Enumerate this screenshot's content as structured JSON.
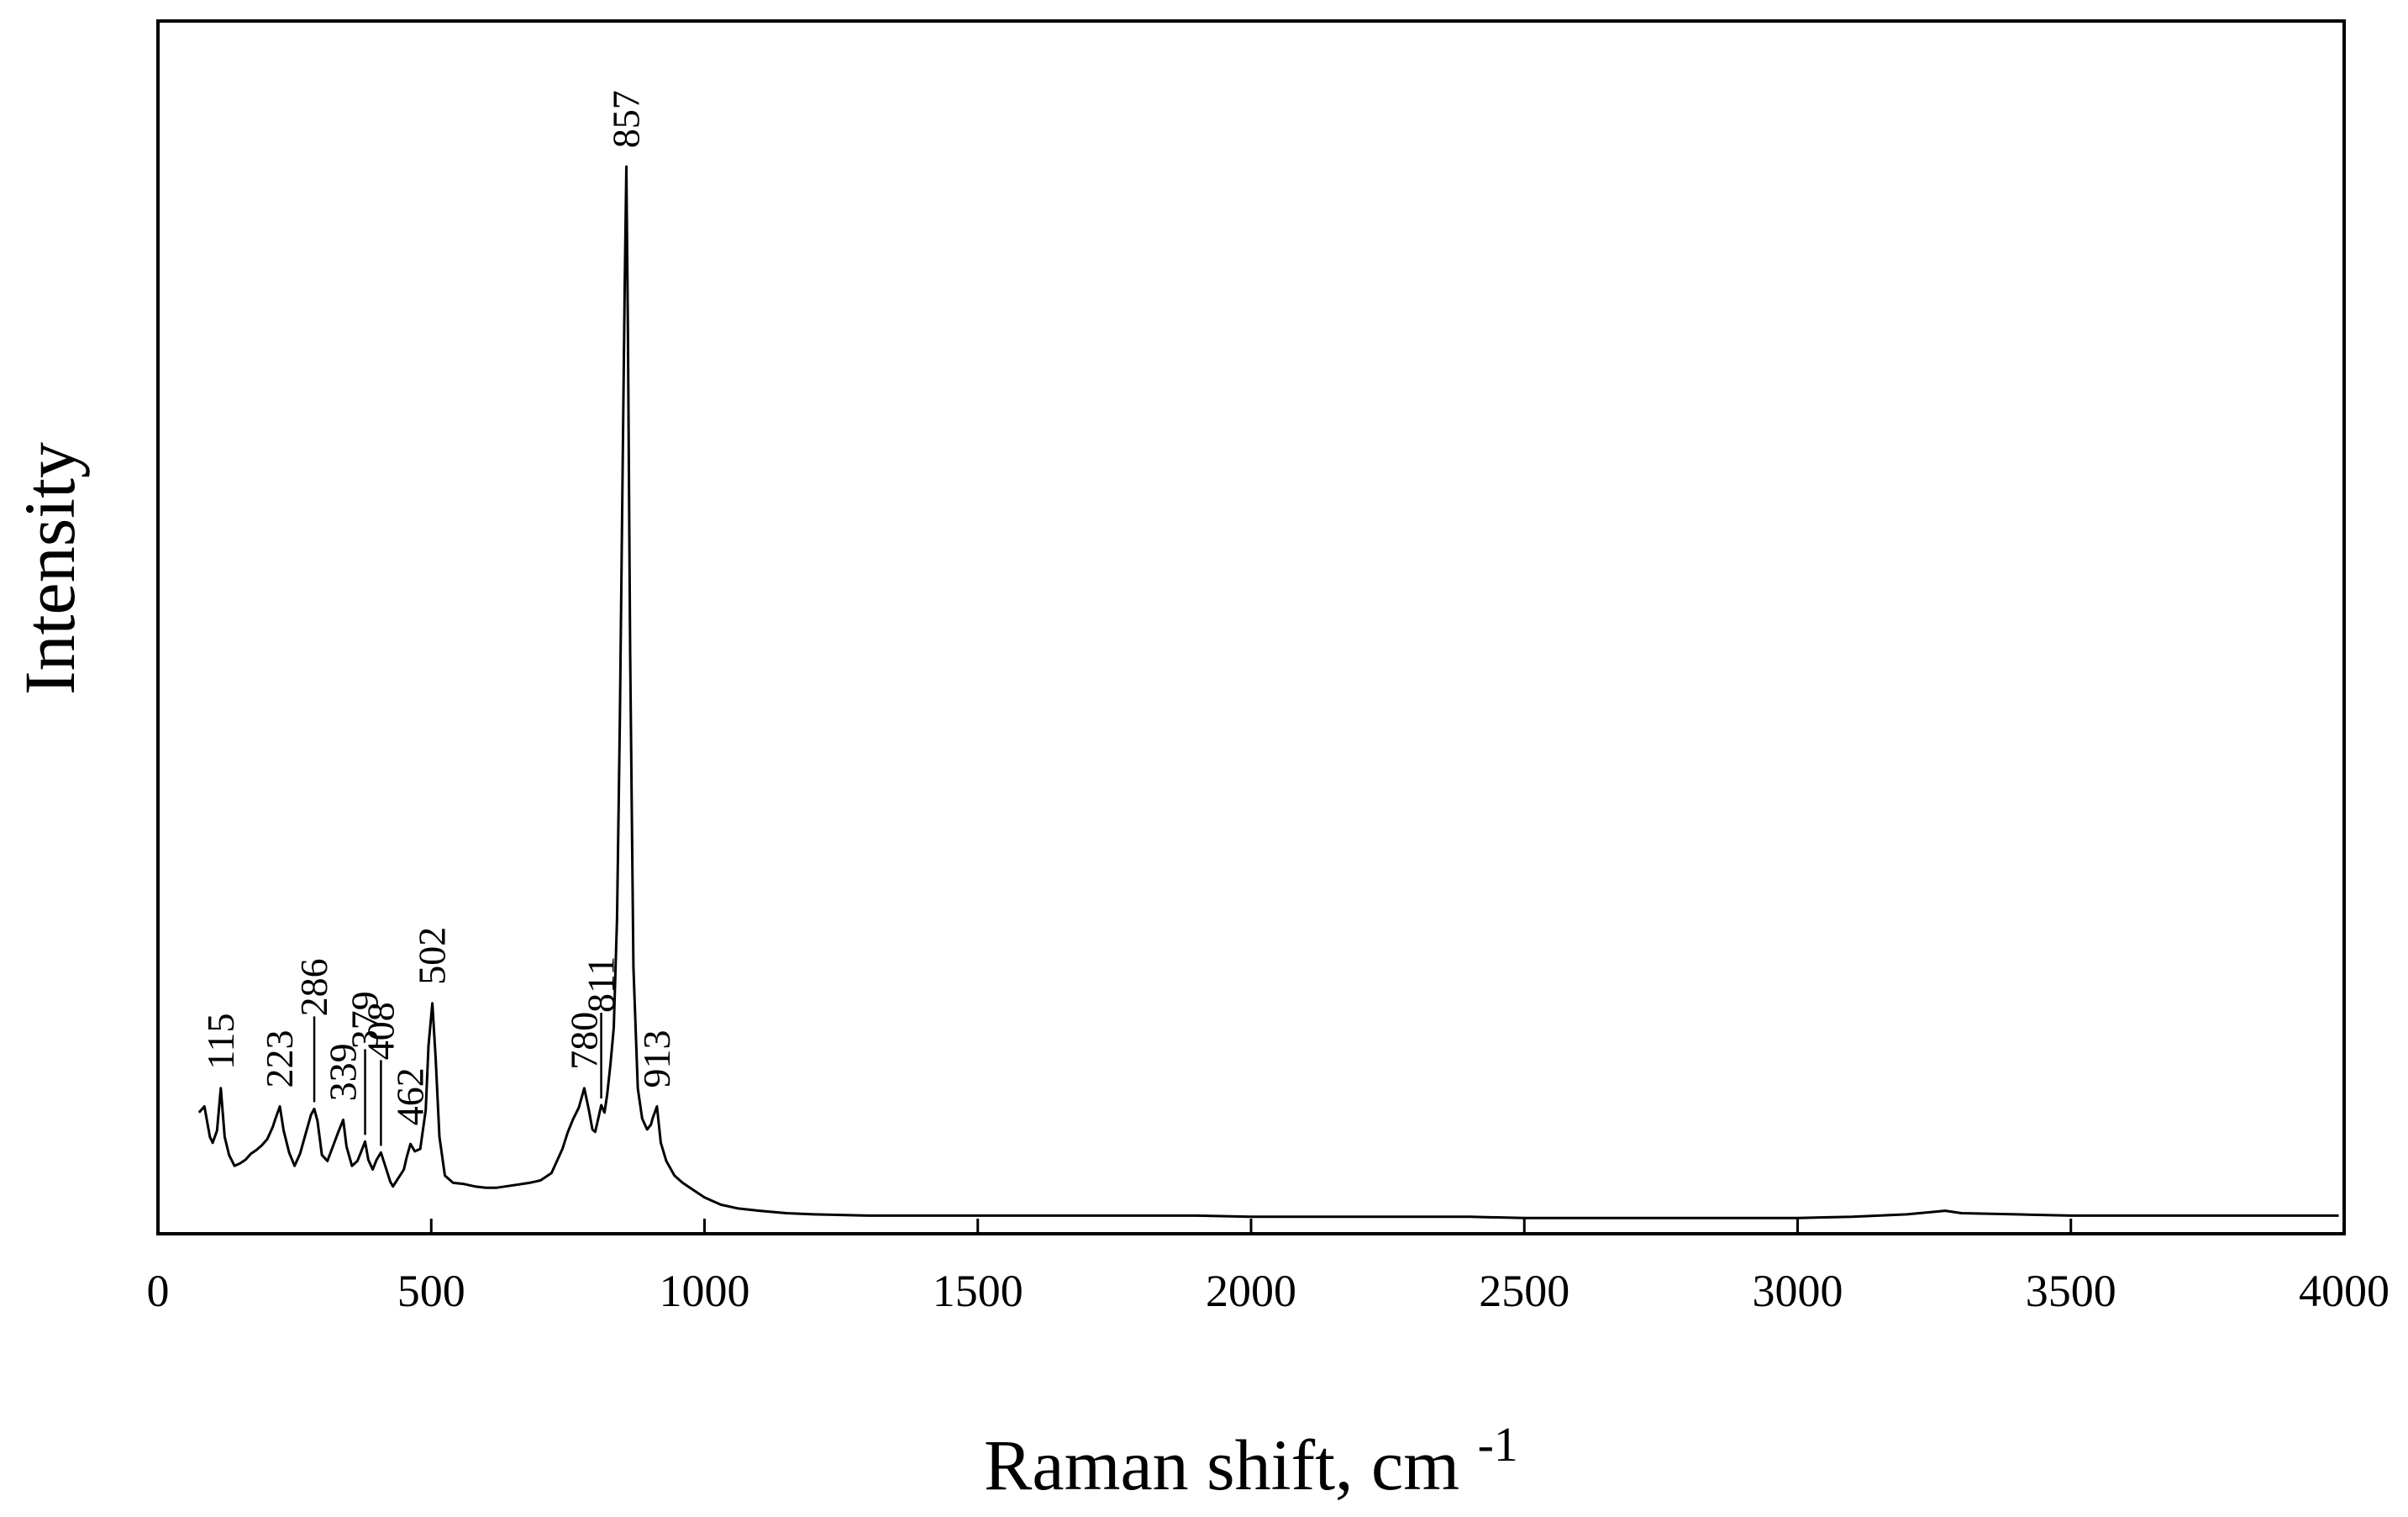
{
  "chart_data": {
    "type": "line",
    "title": "",
    "xlabel": "Raman shift, cm",
    "xlabel_superscript": "-1",
    "ylabel": "Intensity",
    "xlim": [
      0,
      4000
    ],
    "ylim": [
      0,
      100
    ],
    "x_ticks": [
      0,
      500,
      1000,
      1500,
      2000,
      2500,
      3000,
      3500,
      4000
    ],
    "y_ticks_shown": false,
    "grid": false,
    "legend": "none",
    "line_color": "#000000",
    "series": [
      {
        "name": "",
        "x": [
          75,
          85,
          95,
          100,
          108,
          115,
          122,
          130,
          140,
          150,
          160,
          170,
          180,
          190,
          200,
          210,
          215,
          223,
          230,
          240,
          250,
          260,
          270,
          280,
          286,
          292,
          300,
          310,
          320,
          330,
          339,
          345,
          355,
          365,
          372,
          379,
          385,
          393,
          400,
          408,
          415,
          425,
          430,
          440,
          450,
          455,
          462,
          470,
          480,
          490,
          495,
          502,
          508,
          515,
          525,
          540,
          560,
          580,
          600,
          620,
          650,
          680,
          700,
          720,
          740,
          750,
          760,
          770,
          780,
          788,
          795,
          800,
          805,
          811,
          817,
          822,
          828,
          834,
          840,
          845,
          850,
          854,
          857,
          860,
          864,
          870,
          878,
          886,
          895,
          902,
          905,
          913,
          920,
          930,
          945,
          960,
          980,
          1000,
          1030,
          1060,
          1100,
          1150,
          1200,
          1300,
          1400,
          1500,
          1600,
          1700,
          1800,
          1900,
          2000,
          2100,
          2200,
          2300,
          2400,
          2500,
          2600,
          2700,
          2800,
          2900,
          3000,
          3100,
          3200,
          3270,
          3300,
          3400,
          3500,
          3600,
          3700,
          3800,
          3900,
          3990
        ],
        "values": [
          10.0,
          10.5,
          8.0,
          7.5,
          8.5,
          12.0,
          8.0,
          6.5,
          5.6,
          5.8,
          6.1,
          6.6,
          6.9,
          7.3,
          7.8,
          8.8,
          9.5,
          10.5,
          8.5,
          6.7,
          5.6,
          6.6,
          8.2,
          9.8,
          10.3,
          9.3,
          6.5,
          6.0,
          7.2,
          8.4,
          9.4,
          7.2,
          5.6,
          6.0,
          6.8,
          7.6,
          6.1,
          5.3,
          6.1,
          6.7,
          5.7,
          4.3,
          3.9,
          4.6,
          5.3,
          6.3,
          7.4,
          6.8,
          7.0,
          10.2,
          15.5,
          19.0,
          14.5,
          8.0,
          4.8,
          4.2,
          4.1,
          3.9,
          3.8,
          3.8,
          4.0,
          4.2,
          4.4,
          5.0,
          7.0,
          8.4,
          9.5,
          10.4,
          12.0,
          10.3,
          8.6,
          8.4,
          9.4,
          10.6,
          10.0,
          11.5,
          14.0,
          17.0,
          26.0,
          42.0,
          62.0,
          78.0,
          88.0,
          74.0,
          48.0,
          22.0,
          12.0,
          9.5,
          8.6,
          9.0,
          9.5,
          10.5,
          7.5,
          6.0,
          4.8,
          4.2,
          3.6,
          3.0,
          2.4,
          2.1,
          1.9,
          1.7,
          1.6,
          1.5,
          1.5,
          1.5,
          1.5,
          1.5,
          1.5,
          1.5,
          1.4,
          1.4,
          1.4,
          1.4,
          1.4,
          1.3,
          1.3,
          1.3,
          1.3,
          1.3,
          1.3,
          1.4,
          1.6,
          1.9,
          1.7,
          1.6,
          1.5,
          1.5,
          1.5,
          1.5,
          1.5,
          1.5
        ]
      }
    ],
    "annotations": [
      {
        "text": "115",
        "x": 115,
        "y": 12.0,
        "leader": false
      },
      {
        "text": "223",
        "x": 223,
        "y": 10.5,
        "leader": false
      },
      {
        "text": "286",
        "x": 286,
        "y": 10.3,
        "leader": true
      },
      {
        "text": "339",
        "x": 339,
        "y": 9.4,
        "leader": false
      },
      {
        "text": "379",
        "x": 379,
        "y": 7.6,
        "leader": true
      },
      {
        "text": "408",
        "x": 408,
        "y": 6.7,
        "leader": true
      },
      {
        "text": "462",
        "x": 462,
        "y": 7.4,
        "leader": false
      },
      {
        "text": "502",
        "x": 502,
        "y": 19.0,
        "leader": false
      },
      {
        "text": "780",
        "x": 780,
        "y": 12.0,
        "leader": false
      },
      {
        "text": "811",
        "x": 811,
        "y": 10.6,
        "leader": true
      },
      {
        "text": "857",
        "x": 857,
        "y": 88.0,
        "leader": false
      },
      {
        "text": "913",
        "x": 913,
        "y": 10.5,
        "leader": false
      }
    ]
  }
}
